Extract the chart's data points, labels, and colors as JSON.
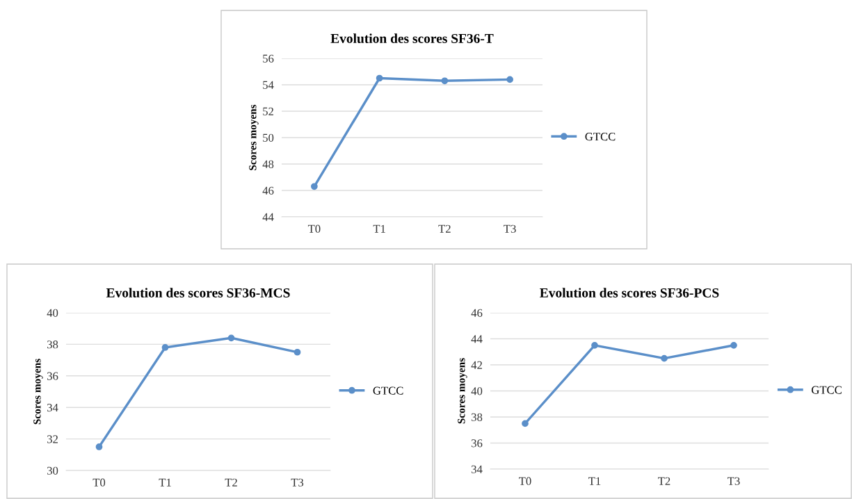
{
  "chart_data": [
    {
      "type": "line",
      "title": "Evolution des scores SF36-T",
      "ylabel": "Scores moyens",
      "categories": [
        "T0",
        "T1",
        "T2",
        "T3"
      ],
      "series": [
        {
          "name": "GTCC",
          "color": "#5b8fc9",
          "values": [
            46.3,
            54.5,
            54.3,
            54.4
          ]
        }
      ],
      "ylim": [
        44,
        56
      ],
      "yticks": [
        44,
        46,
        48,
        50,
        52,
        54,
        56
      ],
      "grid": "y",
      "legend": "right",
      "marker": "circle",
      "line_style": "solid"
    },
    {
      "type": "line",
      "title": "Evolution des scores SF36-MCS",
      "ylabel": "Scores moyens",
      "categories": [
        "T0",
        "T1",
        "T2",
        "T3"
      ],
      "series": [
        {
          "name": "GTCC",
          "color": "#5b8fc9",
          "values": [
            31.5,
            37.8,
            38.4,
            37.5
          ]
        }
      ],
      "ylim": [
        30,
        40
      ],
      "yticks": [
        30,
        32,
        34,
        36,
        38,
        40
      ],
      "grid": "y",
      "legend": "right",
      "marker": "circle",
      "line_style": "solid"
    },
    {
      "type": "line",
      "title": "Evolution des scores SF36-PCS",
      "ylabel": "Scores moyens",
      "categories": [
        "T0",
        "T1",
        "T2",
        "T3"
      ],
      "series": [
        {
          "name": "GTCC",
          "color": "#5b8fc9",
          "values": [
            37.5,
            43.5,
            42.5,
            43.5
          ]
        }
      ],
      "ylim": [
        34,
        46
      ],
      "yticks": [
        34,
        36,
        38,
        40,
        42,
        44,
        46
      ],
      "grid": "y",
      "legend": "right",
      "marker": "circle",
      "line_style": "solid"
    }
  ]
}
